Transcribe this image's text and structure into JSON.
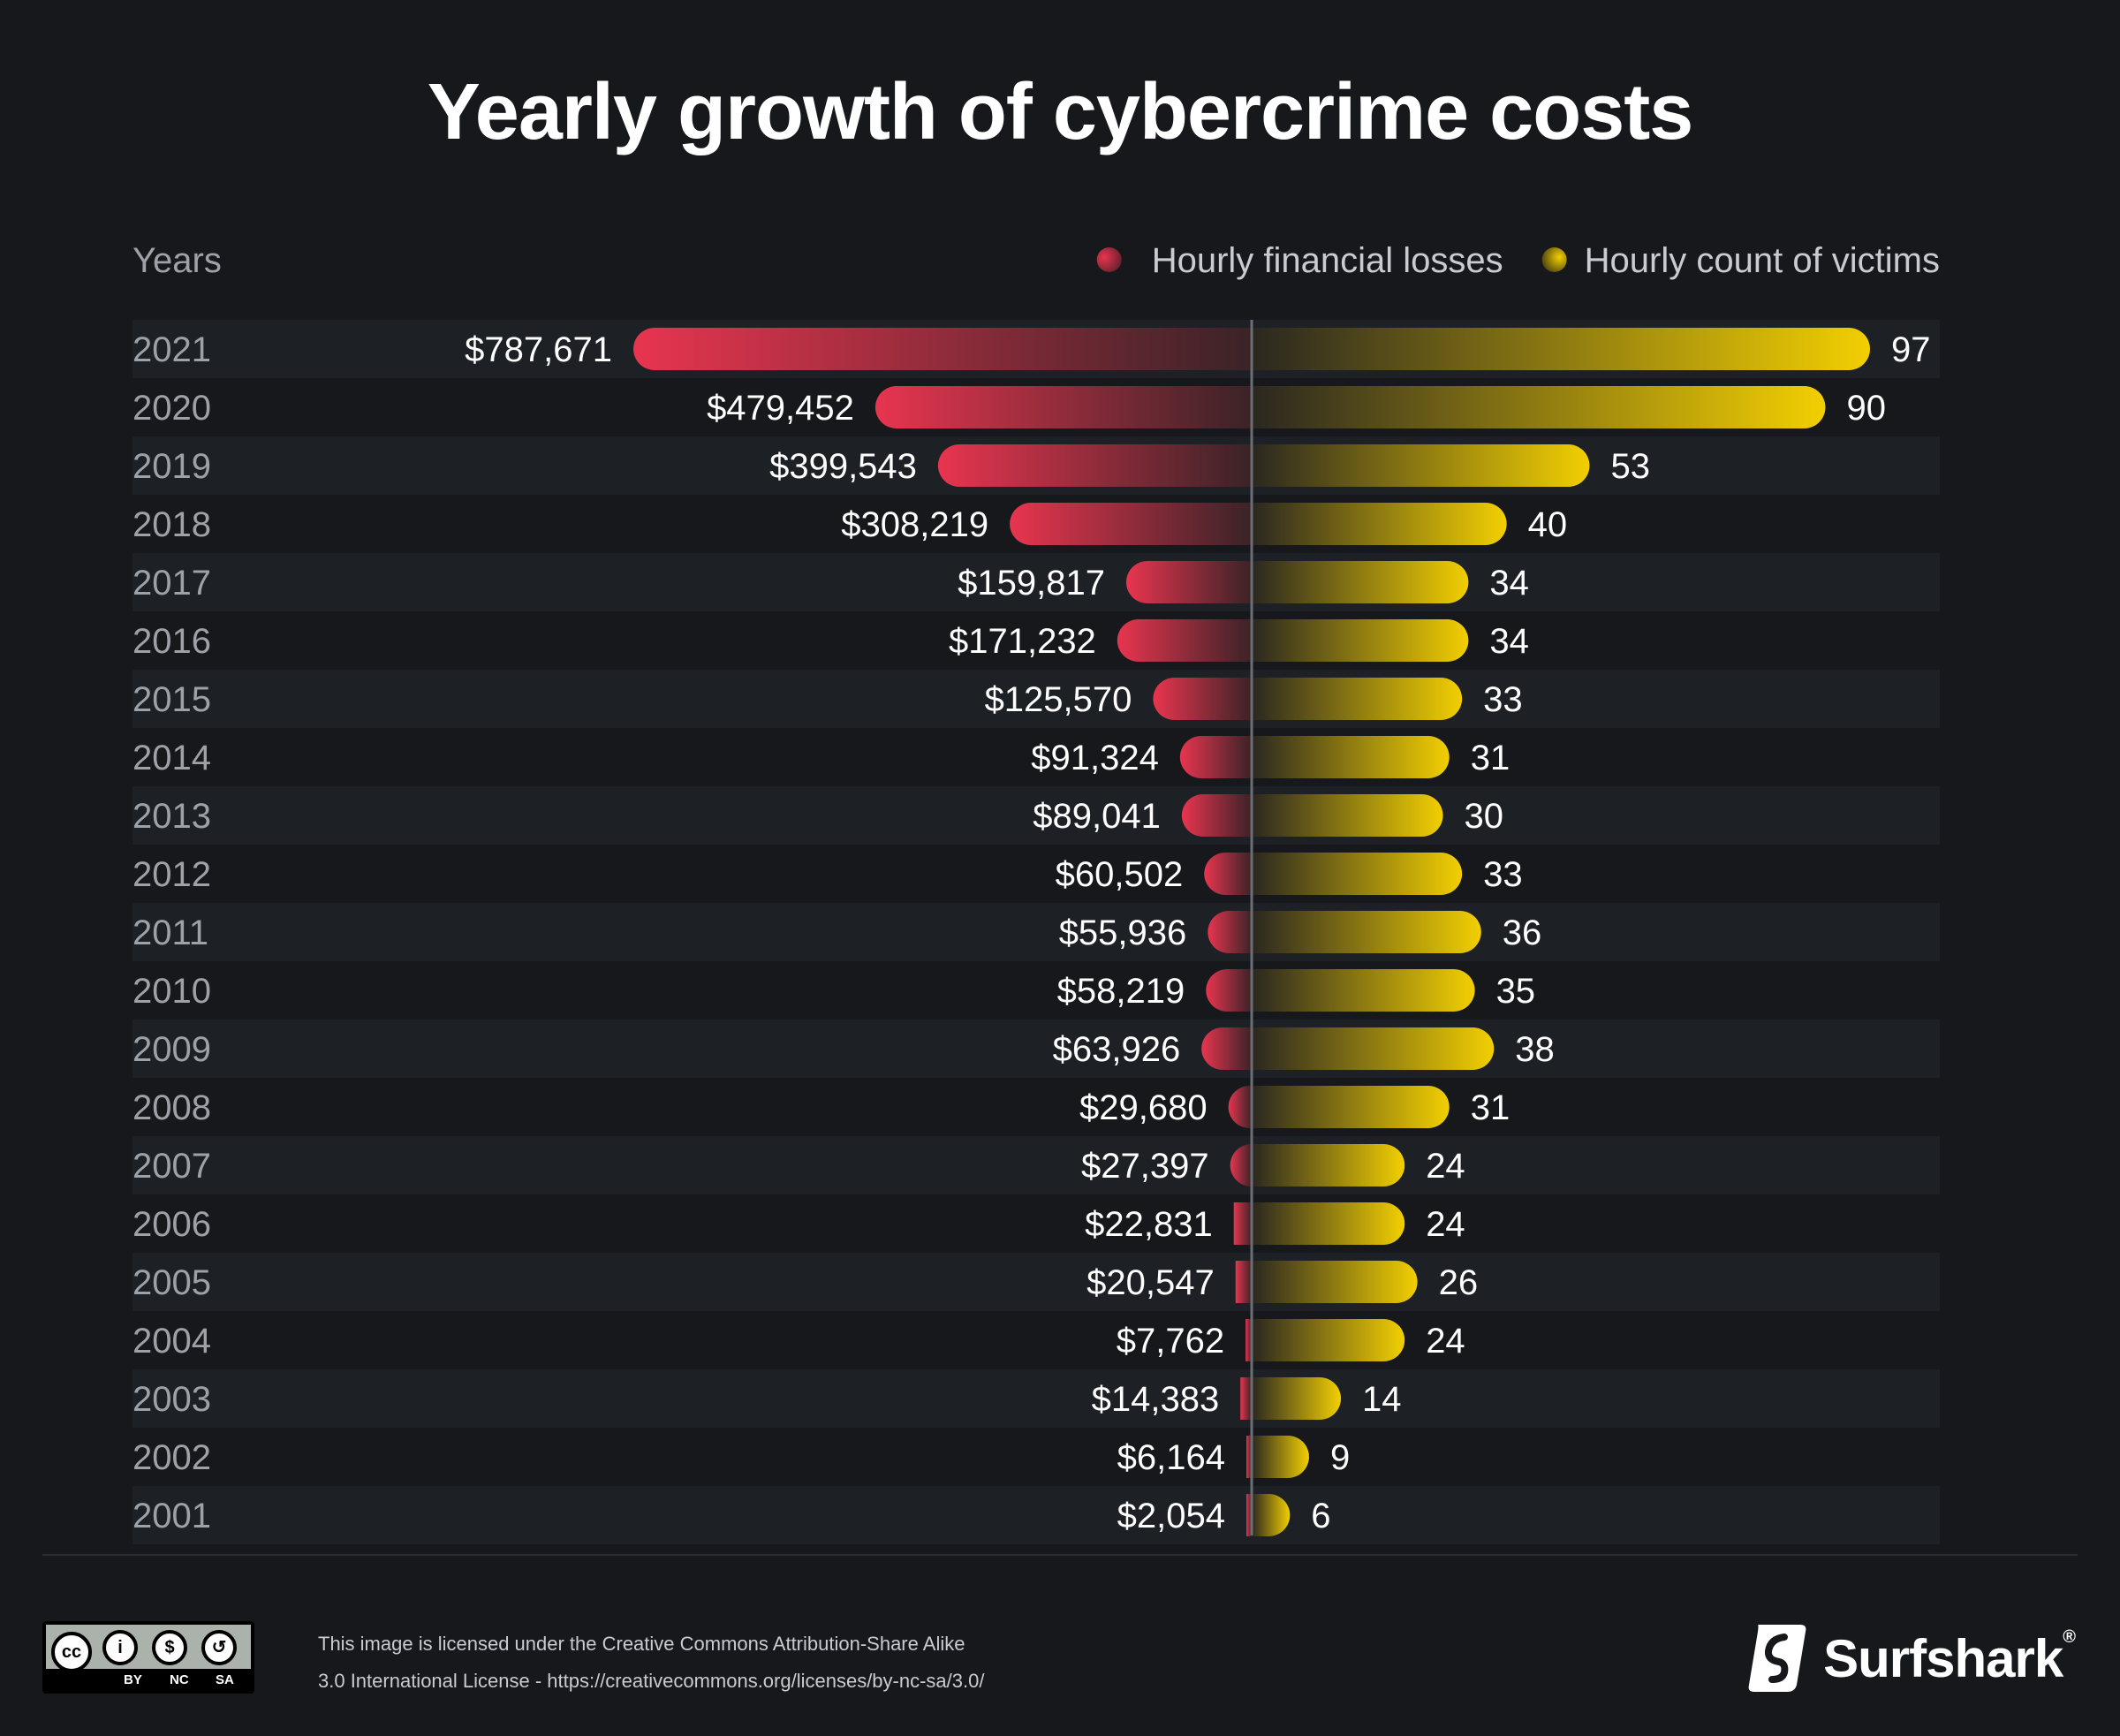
{
  "chart_data": {
    "type": "bar",
    "title": "Yearly growth of cybercrime costs",
    "category_header": "Years",
    "categories": [
      "2021",
      "2020",
      "2019",
      "2018",
      "2017",
      "2016",
      "2015",
      "2014",
      "2013",
      "2012",
      "2011",
      "2010",
      "2009",
      "2008",
      "2007",
      "2006",
      "2005",
      "2004",
      "2003",
      "2002",
      "2001"
    ],
    "series": [
      {
        "name": "Hourly financial losses",
        "direction": "left",
        "color": "#e8354f",
        "values": [
          787671,
          479452,
          399543,
          308219,
          159817,
          171232,
          125570,
          91324,
          89041,
          60502,
          55936,
          58219,
          63926,
          29680,
          27397,
          22831,
          20547,
          7762,
          14383,
          6164,
          2054
        ],
        "labels": [
          "$787,671",
          "$479,452",
          "$399,543",
          "$308,219",
          "$159,817",
          "$171,232",
          "$125,570",
          "$91,324",
          "$89,041",
          "$60,502",
          "$55,936",
          "$58,219",
          "$63,926",
          "$29,680",
          "$27,397",
          "$22,831",
          "$20,547",
          "$7,762",
          "$14,383",
          "$6,164",
          "$2,054"
        ]
      },
      {
        "name": "Hourly count of victims",
        "direction": "right",
        "color": "#f2cf02",
        "values": [
          97,
          90,
          53,
          40,
          34,
          34,
          33,
          31,
          30,
          33,
          36,
          35,
          38,
          31,
          24,
          24,
          26,
          24,
          14,
          9,
          6
        ],
        "labels": [
          "97",
          "90",
          "53",
          "40",
          "34",
          "34",
          "33",
          "31",
          "30",
          "33",
          "36",
          "35",
          "38",
          "31",
          "24",
          "24",
          "26",
          "24",
          "14",
          "9",
          "6"
        ]
      }
    ],
    "legend_position": "top-right"
  },
  "footer": {
    "license_line1": "This image is licensed under the Creative Commons Attribution-Share Alike",
    "license_line2": "3.0 International License - https://creativecommons.org/licenses/by-nc-sa/3.0/",
    "cc_logo": {
      "cc": "cc",
      "person": "i",
      "nc": "$",
      "sa": "↺",
      "labels": [
        "BY",
        "NC",
        "SA"
      ]
    },
    "brand": "Surfshark",
    "brand_mark": "®"
  }
}
